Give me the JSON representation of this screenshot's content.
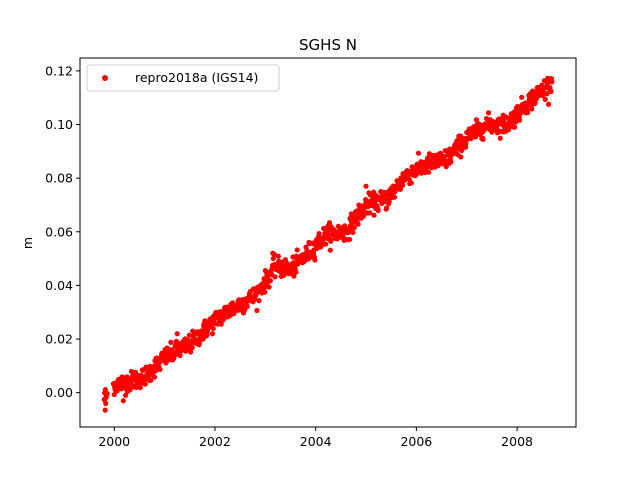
{
  "chart_data": {
    "type": "scatter",
    "title": "SGHS N",
    "xlabel": "",
    "ylabel": "m",
    "xlim": [
      1999.32,
      2009.17
    ],
    "ylim": [
      -0.0128,
      0.1248
    ],
    "x_ticks": [
      2000,
      2002,
      2004,
      2006,
      2008
    ],
    "x_tick_labels": [
      "2000",
      "2002",
      "2004",
      "2006",
      "2008"
    ],
    "y_ticks": [
      0.0,
      0.02,
      0.04,
      0.06,
      0.08,
      0.1,
      0.12
    ],
    "y_tick_labels": [
      "0.00",
      "0.02",
      "0.04",
      "0.06",
      "0.08",
      "0.10",
      "0.12"
    ],
    "grid": false,
    "legend_position": "top-left",
    "series": [
      {
        "name": "repro2018a (IGS14)",
        "color": "#ff0000",
        "marker": "dot",
        "trend_x": [
          1999.8,
          2000.0,
          2000.3,
          2000.6,
          2001.0,
          2001.5,
          2002.0,
          2002.4,
          2002.8,
          2003.2,
          2003.5,
          2003.8,
          2004.2,
          2004.6,
          2005.0,
          2005.4,
          2005.8,
          2006.2,
          2006.6,
          2007.0,
          2007.4,
          2007.8,
          2008.2,
          2008.7
        ],
        "trend_y": [
          -0.002,
          0.003,
          0.004,
          0.006,
          0.013,
          0.018,
          0.027,
          0.032,
          0.036,
          0.047,
          0.046,
          0.051,
          0.059,
          0.06,
          0.07,
          0.072,
          0.081,
          0.085,
          0.087,
          0.095,
          0.1,
          0.1,
          0.108,
          0.116
        ],
        "noise": 0.0018,
        "outliers": [
          {
            "x": 1999.82,
            "y": -0.0065
          },
          {
            "x": 1999.83,
            "y": -0.004
          },
          {
            "x": 2000.18,
            "y": -0.003
          },
          {
            "x": 2001.25,
            "y": 0.022
          },
          {
            "x": 2003.15,
            "y": 0.052
          },
          {
            "x": 2005.0,
            "y": 0.077
          },
          {
            "x": 2005.45,
            "y": 0.075
          },
          {
            "x": 2006.45,
            "y": 0.089
          }
        ]
      }
    ]
  }
}
